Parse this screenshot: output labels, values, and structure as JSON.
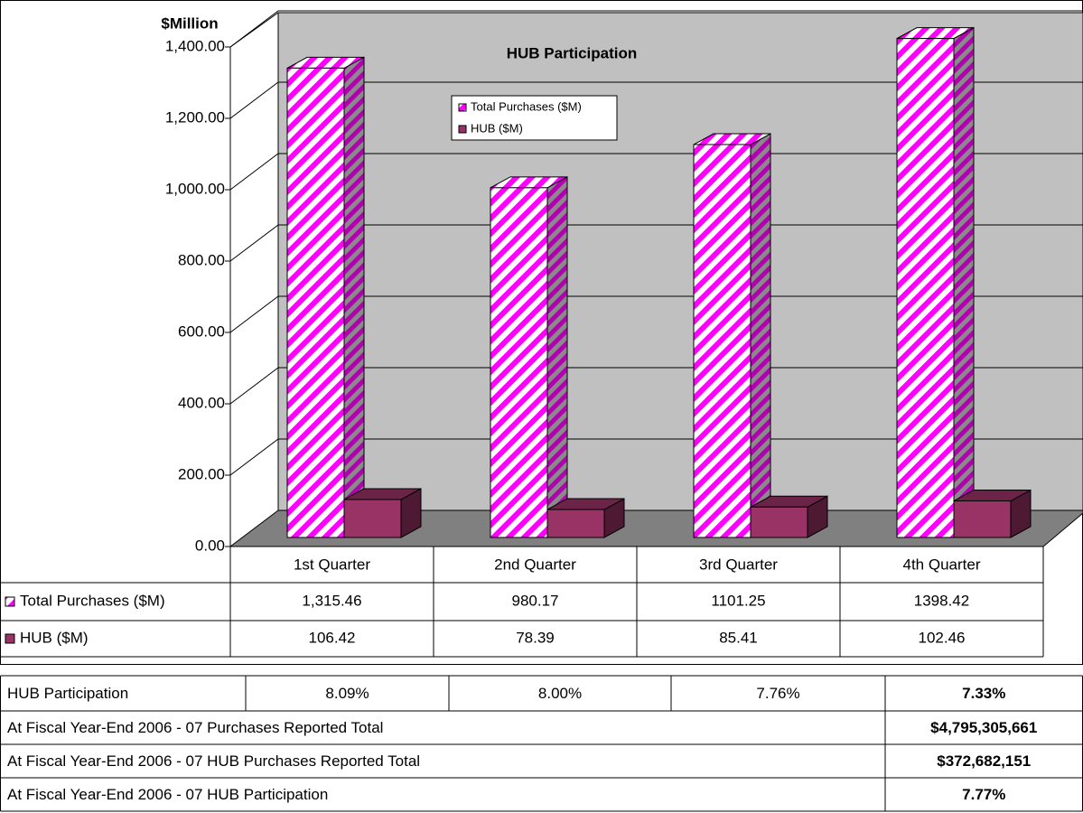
{
  "chart_data": {
    "type": "bar3d",
    "title": "HUB Participation",
    "y_label": "$Million",
    "categories": [
      "1st Quarter",
      "2nd Quarter",
      "3rd Quarter",
      "4th Quarter"
    ],
    "series": [
      {
        "name": "Total Purchases ($M)",
        "color": "#ff00ff",
        "values": [
          1315.46,
          980.17,
          1101.25,
          1398.42
        ],
        "value_labels": [
          "1,315.46",
          "980.17",
          "1101.25",
          "1398.42"
        ]
      },
      {
        "name": "HUB ($M)",
        "color": "#993366",
        "values": [
          106.42,
          78.39,
          85.41,
          102.46
        ]
      }
    ],
    "ylim": [
      0,
      1400
    ],
    "yticks": [
      {
        "value": 0,
        "label": "0.00"
      },
      {
        "value": 200,
        "label": "200.00"
      },
      {
        "value": 400,
        "label": "400.00"
      },
      {
        "value": 600,
        "label": "600.00"
      },
      {
        "value": 800,
        "label": "800.00"
      },
      {
        "value": 1000,
        "label": "1,000.00"
      },
      {
        "value": 1200,
        "label": "1,200.00"
      },
      {
        "value": 1400,
        "label": "1,400.00"
      }
    ],
    "grid": true
  },
  "table": {
    "rows": [
      [
        "HUB Participation",
        "8.09%",
        "8.00%",
        "7.76%",
        "7.33%"
      ],
      [
        "At Fiscal Year-End 2006 - 07 Purchases Reported Total",
        "$4,795,305,661"
      ],
      [
        "At Fiscal Year-End 2006 - 07 HUB Purchases Reported Total",
        "$372,682,151"
      ],
      [
        "At Fiscal Year-End 2006 - 07 HUB Participation",
        "7.77%"
      ]
    ]
  }
}
